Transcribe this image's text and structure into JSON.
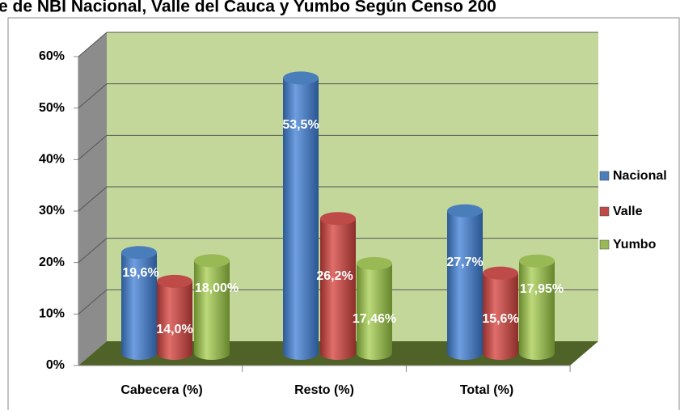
{
  "chart_data": {
    "type": "bar3d",
    "title": "e de NBI Nacional, Valle del Cauca y Yumbo Según Censo 200",
    "categories": [
      "Cabecera (%)",
      "Resto (%)",
      "Total (%)"
    ],
    "series": [
      {
        "name": "Nacional",
        "color": "#4a7ebb",
        "values": [
          19.6,
          53.5,
          27.7
        ],
        "value_labels": [
          "19,6%",
          "53,5%",
          "27,7%"
        ]
      },
      {
        "name": "Valle",
        "color": "#be4b48",
        "values": [
          14.0,
          26.2,
          15.6
        ],
        "value_labels": [
          "14,0%",
          "26,2%",
          "15,6%"
        ]
      },
      {
        "name": "Yumbo",
        "color": "#98b954",
        "values": [
          18.0,
          17.46,
          17.95
        ],
        "value_labels": [
          "18,00%",
          "17,46%",
          "17,95%"
        ]
      }
    ],
    "ylim": [
      0,
      60
    ],
    "yticks": [
      {
        "value": 0,
        "label": "0%"
      },
      {
        "value": 10,
        "label": "10%"
      },
      {
        "value": 20,
        "label": "20%"
      },
      {
        "value": 30,
        "label": "30%"
      },
      {
        "value": 40,
        "label": "40%"
      },
      {
        "value": 50,
        "label": "50%"
      },
      {
        "value": 60,
        "label": "60%"
      }
    ],
    "grid": true,
    "legend": "right"
  }
}
